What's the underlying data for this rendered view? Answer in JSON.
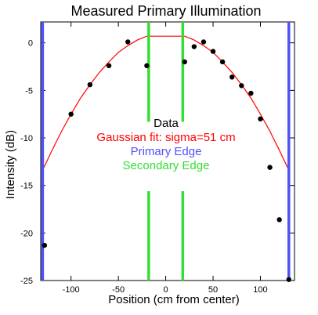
{
  "chart_data": {
    "type": "scatter",
    "title": "Measured Primary Illumination",
    "xlabel": "Position (cm from center)",
    "ylabel": "Intensity (dB)",
    "xlim": [
      -132,
      136
    ],
    "ylim": [
      -25,
      2.2
    ],
    "x_ticks": [
      -100,
      -50,
      0,
      50,
      100
    ],
    "y_ticks": [
      0,
      -5,
      -10,
      -15,
      -20,
      -25
    ],
    "grid": false,
    "legend_placement": "center",
    "legend": [
      {
        "label": "Data",
        "color": "#000000"
      },
      {
        "label": "Gaussian fit: sigma=51 cm",
        "color": "#ff0000"
      },
      {
        "label": "Primary Edge",
        "color": "#5050ff"
      },
      {
        "label": "Secondary Edge",
        "color": "#33dd33"
      }
    ],
    "series": [
      {
        "name": "Data",
        "kind": "scatter",
        "color": "#000000",
        "points": [
          [
            -128,
            -21.3
          ],
          [
            -100,
            -7.5
          ],
          [
            -80,
            -4.4
          ],
          [
            -60,
            -2.4
          ],
          [
            -40,
            0.1
          ],
          [
            -20,
            -2.4
          ],
          [
            20,
            -2.0
          ],
          [
            30,
            -0.4
          ],
          [
            40,
            0.1
          ],
          [
            50,
            -0.9
          ],
          [
            60,
            -2.0
          ],
          [
            70,
            -3.6
          ],
          [
            80,
            -4.5
          ],
          [
            90,
            -5.3
          ],
          [
            100,
            -8.0
          ],
          [
            110,
            -13.1
          ],
          [
            120,
            -18.6
          ],
          [
            130,
            -24.9
          ]
        ]
      },
      {
        "name": "Gaussian fit: sigma=51 cm",
        "kind": "line",
        "color": "#ff0000",
        "points": [
          [
            -131,
            -13.6
          ],
          [
            -120,
            -11.3
          ],
          [
            -110,
            -9.3
          ],
          [
            -100,
            -7.5
          ],
          [
            -90,
            -5.8
          ],
          [
            -80,
            -4.4
          ],
          [
            -70,
            -3.1
          ],
          [
            -60,
            -2.0
          ],
          [
            -50,
            -1.0
          ],
          [
            -40,
            -0.3
          ],
          [
            -30,
            0.3
          ],
          [
            -20,
            0.7
          ],
          [
            20,
            0.7
          ],
          [
            30,
            0.3
          ],
          [
            40,
            -0.3
          ],
          [
            50,
            -1.0
          ],
          [
            60,
            -2.0
          ],
          [
            70,
            -3.1
          ],
          [
            80,
            -4.4
          ],
          [
            90,
            -5.8
          ],
          [
            100,
            -7.5
          ],
          [
            110,
            -9.3
          ],
          [
            120,
            -11.3
          ],
          [
            131,
            -13.6
          ]
        ]
      },
      {
        "name": "Primary Edge",
        "kind": "vline",
        "color": "#5050ff",
        "x": [
          -130,
          130
        ]
      },
      {
        "name": "Secondary Edge",
        "kind": "vline_gapped",
        "color": "#33dd33",
        "x": [
          -18,
          18
        ],
        "segments": [
          [
            2.2,
            -8.3
          ],
          [
            -15.6,
            -25
          ]
        ]
      }
    ]
  }
}
